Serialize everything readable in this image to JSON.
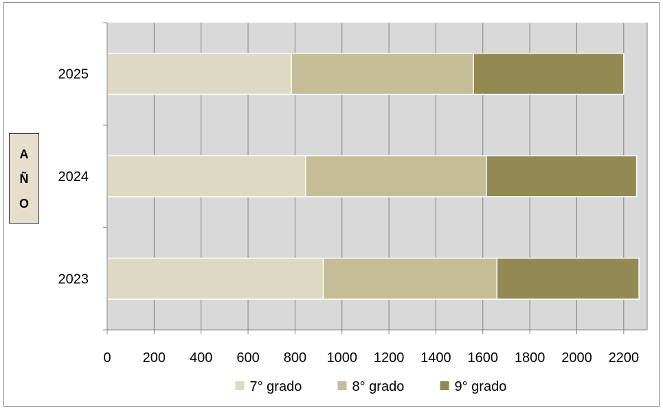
{
  "chart_data": {
    "type": "bar",
    "orientation": "horizontal",
    "stacked": true,
    "categories": [
      "2023",
      "2024",
      "2025"
    ],
    "series": [
      {
        "name": "7° grado",
        "values": [
          920,
          845,
          785
        ],
        "color": "#ddd9c3"
      },
      {
        "name": "8° grado",
        "values": [
          740,
          770,
          775
        ],
        "color": "#c4bd97"
      },
      {
        "name": "9° grado",
        "values": [
          605,
          640,
          640
        ],
        "color": "#938953"
      }
    ],
    "xlim": [
      0,
      2300
    ],
    "xticks": [
      0,
      200,
      400,
      600,
      800,
      1000,
      1200,
      1400,
      1600,
      1800,
      2000,
      2200
    ],
    "ylabel_letters": [
      "A",
      "Ñ",
      "O"
    ],
    "plot_background": "#d9d9d9",
    "grid": true,
    "legend_position": "bottom"
  }
}
